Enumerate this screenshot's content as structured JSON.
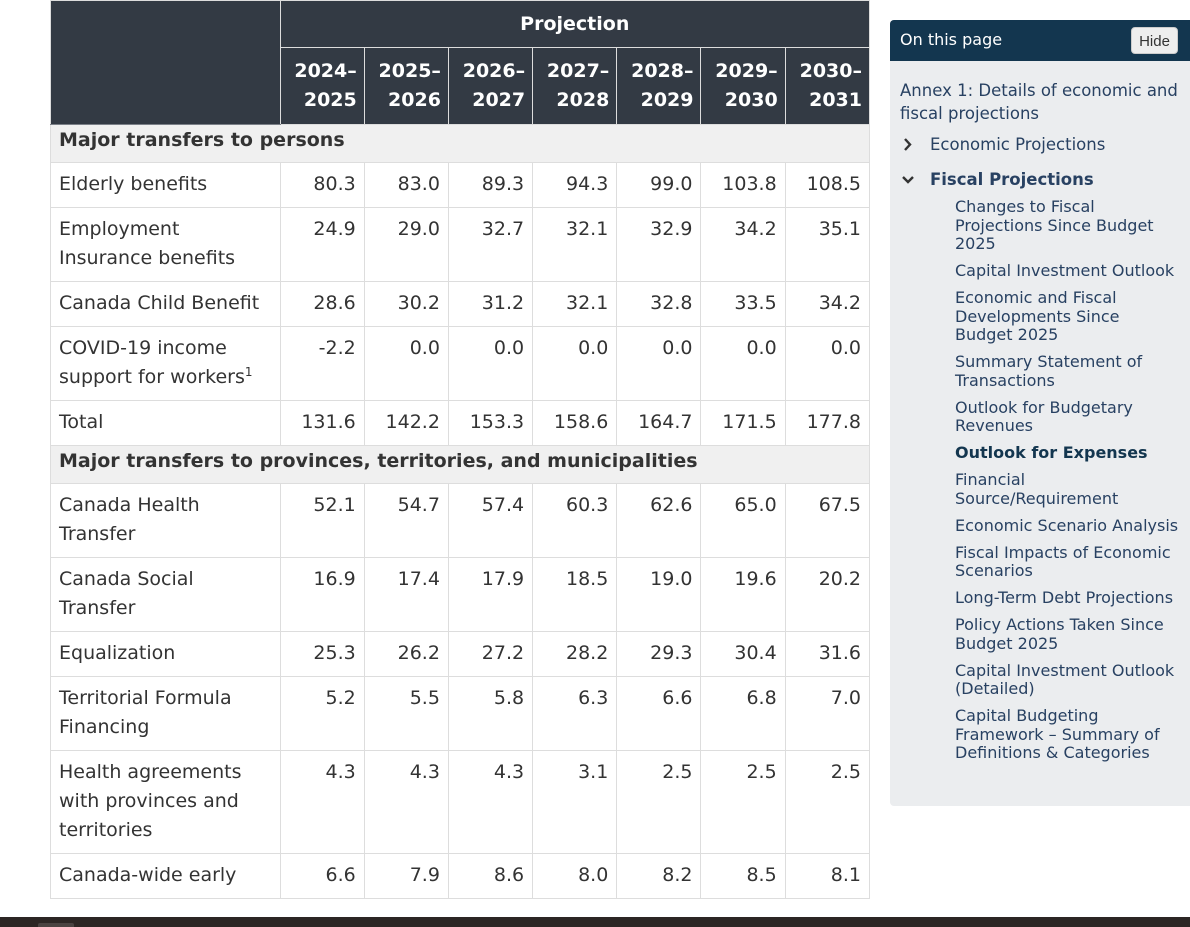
{
  "table": {
    "projection_label": "Projection",
    "year_columns": [
      {
        "start": "2024–",
        "end": "2025"
      },
      {
        "start": "2025–",
        "end": "2026"
      },
      {
        "start": "2026–",
        "end": "2027"
      },
      {
        "start": "2027–",
        "end": "2028"
      },
      {
        "start": "2028–",
        "end": "2029"
      },
      {
        "start": "2029–",
        "end": "2030"
      },
      {
        "start": "2030–",
        "end": "2031"
      }
    ],
    "sections": [
      {
        "title": "Major transfers to persons",
        "rows": [
          {
            "label": "Elderly benefits",
            "values": [
              "80.3",
              "83.0",
              "89.3",
              "94.3",
              "99.0",
              "103.8",
              "108.5"
            ]
          },
          {
            "label": "Employment Insurance benefits",
            "values": [
              "24.9",
              "29.0",
              "32.7",
              "32.1",
              "32.9",
              "34.2",
              "35.1"
            ]
          },
          {
            "label": "Canada Child Benefit",
            "values": [
              "28.6",
              "30.2",
              "31.2",
              "32.1",
              "32.8",
              "33.5",
              "34.2"
            ]
          },
          {
            "label": "COVID-19 income support for workers",
            "footnote": "1",
            "values": [
              "-2.2",
              "0.0",
              "0.0",
              "0.0",
              "0.0",
              "0.0",
              "0.0"
            ]
          },
          {
            "label": "Total",
            "values": [
              "131.6",
              "142.2",
              "153.3",
              "158.6",
              "164.7",
              "171.5",
              "177.8"
            ]
          }
        ]
      },
      {
        "title": "Major transfers to provinces, territories, and municipalities",
        "rows": [
          {
            "label": "Canada Health Transfer",
            "values": [
              "52.1",
              "54.7",
              "57.4",
              "60.3",
              "62.6",
              "65.0",
              "67.5"
            ]
          },
          {
            "label": "Canada Social Transfer",
            "values": [
              "16.9",
              "17.4",
              "17.9",
              "18.5",
              "19.0",
              "19.6",
              "20.2"
            ]
          },
          {
            "label": "Equalization",
            "values": [
              "25.3",
              "26.2",
              "27.2",
              "28.2",
              "29.3",
              "30.4",
              "31.6"
            ]
          },
          {
            "label": "Territorial Formula Financing",
            "values": [
              "5.2",
              "5.5",
              "5.8",
              "6.3",
              "6.6",
              "6.8",
              "7.0"
            ]
          },
          {
            "label": "Health agreements with provinces and territories",
            "values": [
              "4.3",
              "4.3",
              "4.3",
              "3.1",
              "2.5",
              "2.5",
              "2.5"
            ]
          },
          {
            "label": "Canada-wide early",
            "values": [
              "6.6",
              "7.9",
              "8.6",
              "8.0",
              "8.2",
              "8.5",
              "8.1"
            ]
          }
        ]
      }
    ]
  },
  "sidebar": {
    "title": "On this page",
    "hide_label": "Hide",
    "annex_link": "Annex 1: Details of economic and fiscal projections",
    "sections": [
      {
        "label": "Economic Projections",
        "expanded": false,
        "icon": "chevron-right-icon"
      },
      {
        "label": "Fiscal Projections",
        "expanded": true,
        "icon": "chevron-down-icon"
      }
    ],
    "fiscal_items": [
      "Changes to Fiscal Projections Since Budget 2025",
      "Capital Investment Outlook",
      "Economic and Fiscal Developments Since Budget 2025",
      "Summary Statement of Transactions",
      "Outlook for Budgetary Revenues",
      "Outlook for Expenses",
      "Financial Source/Requirement",
      "Economic Scenario Analysis",
      "Fiscal Impacts of Economic Scenarios",
      "Long-Term Debt Projections",
      "Policy Actions Taken Since Budget 2025",
      "Capital Investment Outlook (Detailed)",
      "Capital Budgeting Framework – Summary of Definitions & Categories"
    ],
    "current_item": "Outlook for Expenses"
  },
  "colors": {
    "table_header_bg": "#333a44",
    "section_row_bg": "#f0f0f0",
    "sidebar_header_bg": "#13364f",
    "sidebar_bg": "#ebedef",
    "link": "#284162"
  }
}
